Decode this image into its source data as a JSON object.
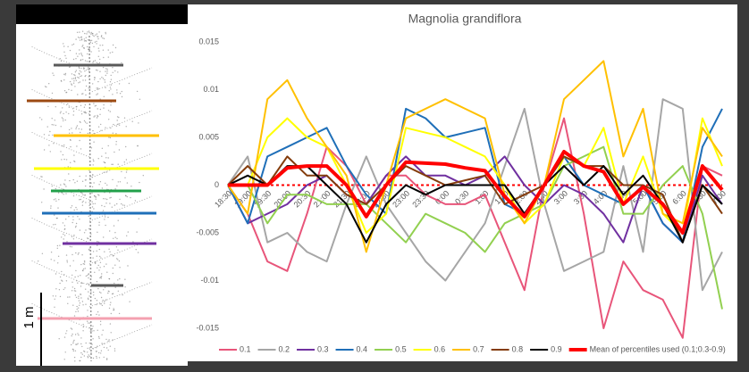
{
  "image_panel": {
    "scale_label": "1 m"
  },
  "chart_data": {
    "type": "line",
    "title": "Magnolia grandiflora",
    "categories": [
      "18:30",
      "19:00",
      "19:30",
      "20:00",
      "20:30",
      "21:00",
      "21:30",
      "22:00",
      "22:30",
      "23:00",
      "23:30",
      "0:00",
      "0:30",
      "1:00",
      "1:30",
      "2:00",
      "2:30",
      "3:00",
      "3:30",
      "4:00",
      "4:30",
      "5:00",
      "5:30",
      "6:00",
      "6:30",
      "7:00"
    ],
    "ylim": [
      -0.015,
      0.015
    ],
    "yticks": [
      -0.015,
      -0.01,
      -0.005,
      0,
      0.005,
      0.01,
      0.015
    ],
    "grid": false,
    "legend": "bottom",
    "series": [
      {
        "name": "0.1",
        "color": "#e8557a",
        "values": [
          0,
          -0.003,
          -0.008,
          -0.009,
          -0.003,
          0.004,
          0.002,
          -0.002,
          0.001,
          0.001,
          -0.001,
          -0.002,
          -0.002,
          -0.001,
          -0.006,
          -0.011,
          0,
          0.007,
          -0.003,
          -0.015,
          -0.008,
          -0.011,
          -0.012,
          -0.016,
          0.002,
          0.001
        ]
      },
      {
        "name": "0.2",
        "color": "#a6a6a6",
        "values": [
          0,
          0.003,
          -0.006,
          -0.005,
          -0.007,
          -0.008,
          -0.002,
          0.003,
          -0.002,
          -0.005,
          -0.008,
          -0.01,
          -0.007,
          -0.004,
          0.002,
          0.008,
          -0.002,
          -0.009,
          -0.008,
          -0.007,
          0.002,
          -0.007,
          0.009,
          0.008,
          -0.011,
          -0.007
        ]
      },
      {
        "name": "0.3",
        "color": "#7030a0",
        "values": [
          0,
          -0.004,
          -0.003,
          -0.002,
          0,
          0.001,
          -0.001,
          -0.002,
          0.001,
          0.003,
          0.001,
          0.001,
          0,
          0.001,
          0.003,
          0,
          -0.002,
          0,
          -0.001,
          -0.003,
          -0.006,
          0,
          -0.004,
          -0.006,
          0.001,
          -0.002
        ]
      },
      {
        "name": "0.4",
        "color": "#1f6fb8",
        "values": [
          0,
          -0.004,
          0.003,
          0.004,
          0.005,
          0.006,
          0.002,
          -0.001,
          -0.003,
          0.008,
          0.007,
          0.005,
          0.0055,
          0.006,
          -0.002,
          -0.003,
          0,
          0.003,
          0,
          -0.001,
          -0.002,
          0,
          -0.004,
          -0.006,
          0.004,
          0.008
        ]
      },
      {
        "name": "0.5",
        "color": "#92d050",
        "values": [
          0,
          0,
          -0.004,
          -0.001,
          -0.001,
          -0.002,
          -0.002,
          -0.002,
          -0.004,
          -0.006,
          -0.003,
          -0.004,
          -0.005,
          -0.007,
          -0.004,
          -0.003,
          -0.002,
          0.002,
          0.003,
          0.004,
          -0.003,
          -0.003,
          0,
          0.002,
          -0.003,
          -0.013
        ]
      },
      {
        "name": "0.6",
        "color": "#ffff00",
        "values": [
          0,
          0,
          0.005,
          0.007,
          0.005,
          0.004,
          0,
          -0.005,
          -0.003,
          0.006,
          0.0055,
          0.005,
          0.004,
          0.003,
          0,
          -0.004,
          -0.002,
          0.003,
          0.002,
          0.006,
          -0.002,
          0.003,
          -0.003,
          -0.005,
          0.007,
          0.002
        ]
      },
      {
        "name": "0.7",
        "color": "#ffc000",
        "values": [
          0,
          -0.003,
          0.009,
          0.011,
          0.007,
          0.004,
          0.001,
          -0.007,
          0,
          0.007,
          0.008,
          0.009,
          0.008,
          0.007,
          -0.001,
          -0.004,
          0,
          0.009,
          0.011,
          0.013,
          0.003,
          0.008,
          -0.003,
          -0.004,
          0.006,
          0.003
        ]
      },
      {
        "name": "0.8",
        "color": "#843c0c",
        "values": [
          0,
          0.002,
          0,
          0.003,
          0.001,
          0.001,
          -0.001,
          -0.002,
          0,
          0.002,
          0.001,
          0,
          0.0005,
          0.001,
          -0.002,
          -0.001,
          0,
          0.003,
          0.002,
          0.002,
          0,
          0,
          -0.001,
          -0.006,
          0,
          -0.003
        ]
      },
      {
        "name": "0.9",
        "color": "#000000",
        "values": [
          0,
          0.001,
          0,
          0.002,
          0.002,
          0,
          -0.002,
          -0.006,
          -0.002,
          0,
          -0.001,
          0,
          0,
          0,
          0,
          -0.003,
          0,
          0.002,
          0,
          0.002,
          -0.001,
          0.001,
          -0.002,
          -0.006,
          0,
          -0.002
        ]
      },
      {
        "name": "Mean of percentiles used (0.1;0.3-0.9)",
        "color": "#ff0000",
        "width": 4,
        "values": [
          0,
          0,
          0,
          0.0018,
          0.002,
          0.002,
          0,
          -0.0033,
          0,
          0.0024,
          0.0023,
          0.0022,
          0.0018,
          0.0015,
          -0.0012,
          -0.0033,
          0,
          0.0035,
          0.002,
          0.0014,
          -0.002,
          -0.0002,
          -0.002,
          -0.005,
          0.002,
          -0.0005
        ]
      }
    ]
  }
}
